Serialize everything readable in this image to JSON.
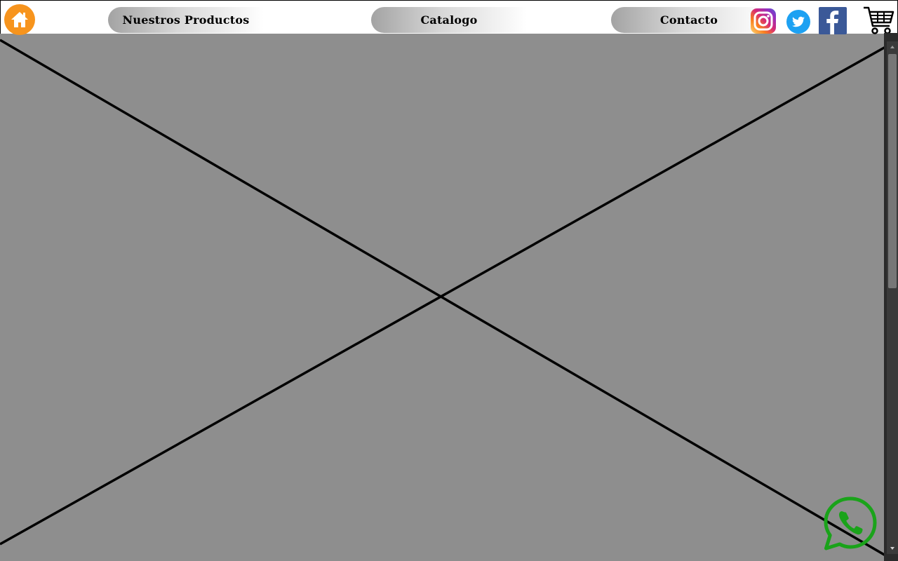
{
  "header": {
    "home_icon": "home-icon",
    "nav": [
      {
        "label": "Nuestros Productos"
      },
      {
        "label": "Catalogo"
      },
      {
        "label": "Contacto"
      }
    ],
    "social_icons": [
      "instagram-icon",
      "twitter-icon",
      "facebook-icon"
    ],
    "cart_icon": "shopping-cart-icon"
  },
  "hero": {
    "state": "broken-image-placeholder",
    "background_color": "#8e8e8e"
  },
  "colors": {
    "home": "#f7941d",
    "twitter": "#1da1f2",
    "facebook": "#3b5998",
    "whatsapp": "#1aa31a"
  },
  "floating": {
    "whatsapp_icon": "whatsapp-icon"
  }
}
